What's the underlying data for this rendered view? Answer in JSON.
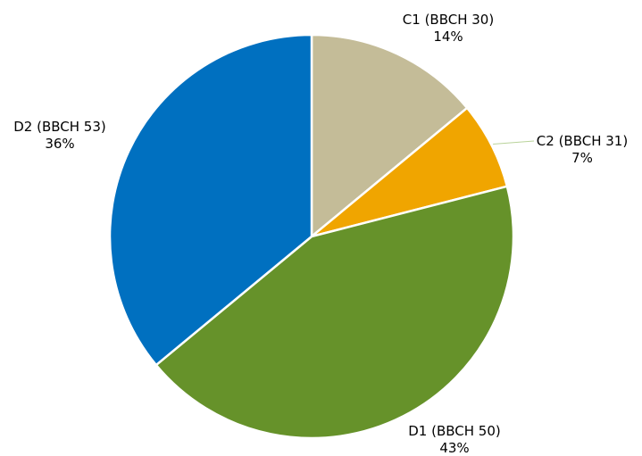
{
  "chart_data": {
    "type": "pie",
    "slices": [
      {
        "category": "C1 (BBCH 30)",
        "value": 14,
        "value_label": "14%",
        "color": "#C4BC98"
      },
      {
        "category": "C2 (BBCH 31)",
        "value": 7,
        "value_label": "7%",
        "color": "#F0A500"
      },
      {
        "category": "D1 (BBCH 50)",
        "value": 43,
        "value_label": "43%",
        "color": "#66922A"
      },
      {
        "category": "D2 (BBCH 53)",
        "value": 36,
        "value_label": "36%",
        "color": "#0070C0"
      }
    ],
    "start_angle": "12 o'clock",
    "direction": "clockwise",
    "legend": "none",
    "labels": "outside, category name with percentage"
  }
}
